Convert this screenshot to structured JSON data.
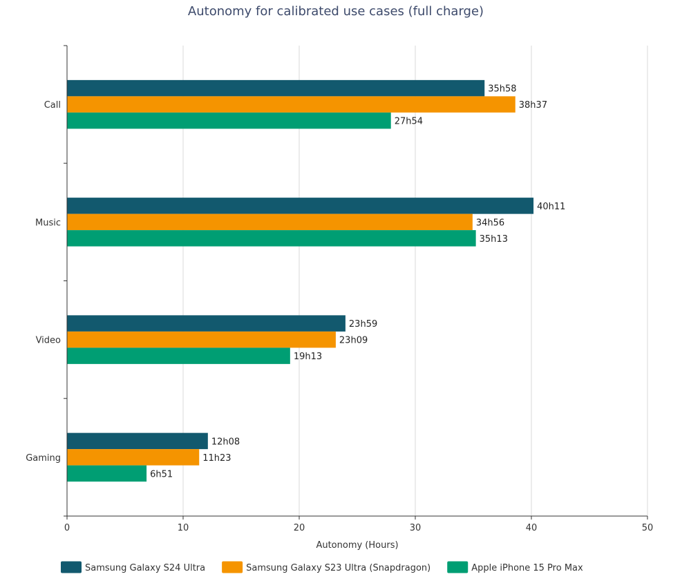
{
  "chart_data": {
    "type": "bar",
    "orientation": "horizontal",
    "title": "Autonomy for calibrated use cases (full charge)",
    "xlabel": "Autonomy (Hours)",
    "ylabel": "",
    "xlim": [
      0,
      50
    ],
    "xticks": [
      0,
      10,
      20,
      30,
      40,
      50
    ],
    "categories": [
      "Call",
      "Music",
      "Video",
      "Gaming"
    ],
    "grid": "vertical",
    "legend": "bottom",
    "series": [
      {
        "name": "Samsung Galaxy S24 Ultra",
        "color": "#12596e",
        "values": [
          35.967,
          40.183,
          23.983,
          12.133
        ],
        "labels": [
          "35h58",
          "40h11",
          "23h59",
          "12h08"
        ]
      },
      {
        "name": "Samsung Galaxy S23 Ultra (Snapdragon)",
        "color": "#f59400",
        "values": [
          38.617,
          34.933,
          23.15,
          11.383
        ],
        "labels": [
          "38h37",
          "34h56",
          "23h09",
          "11h23"
        ]
      },
      {
        "name": "Apple iPhone 15 Pro Max",
        "color": "#009e73",
        "values": [
          27.9,
          35.217,
          19.217,
          6.85
        ],
        "labels": [
          "27h54",
          "35h13",
          "19h13",
          "6h51"
        ]
      }
    ]
  }
}
